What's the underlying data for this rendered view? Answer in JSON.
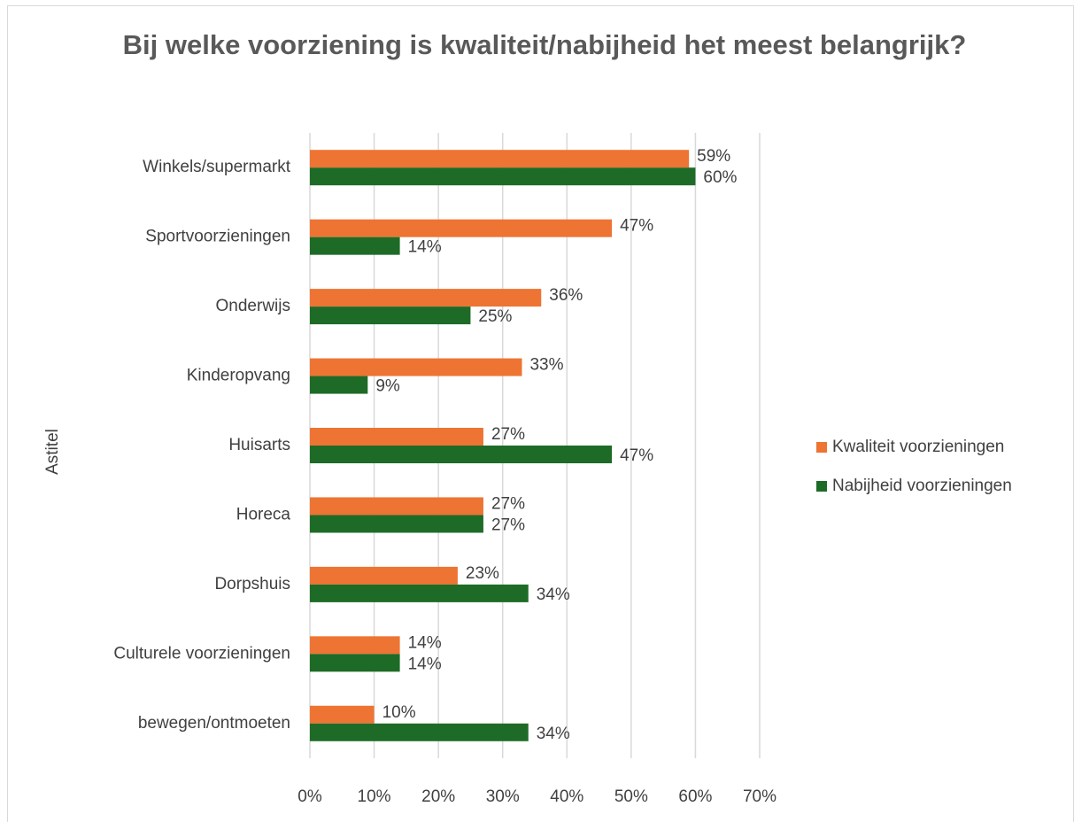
{
  "chart_data": {
    "type": "hbar",
    "title": "Bij welke voorziening is kwaliteit/nabijheid het meest belangrijk?",
    "y_label": "Astitel",
    "categories": [
      "Winkels/supermarkt",
      "Sportvoorzieningen",
      "Onderwijs",
      "Kinderopvang",
      "Huisarts",
      "Horeca",
      "Dorpshuis",
      "Culturele voorzieningen",
      "bewegen/ontmoeten"
    ],
    "series": [
      {
        "name": "Kwaliteit voorzieningen",
        "color": "#ed7433",
        "values": [
          59,
          47,
          36,
          33,
          27,
          27,
          23,
          14,
          10
        ],
        "value_labels": [
          "59%",
          "47%",
          "36%",
          "33%",
          "27%",
          "27%",
          "23%",
          "14%",
          "10%"
        ]
      },
      {
        "name": "Nabijheid voorzieningen",
        "color": "#1e6b27",
        "values": [
          60,
          14,
          25,
          9,
          47,
          27,
          34,
          14,
          34
        ],
        "value_labels": [
          "60%",
          "14%",
          "25%",
          "9%",
          "47%",
          "27%",
          "34%",
          "14%",
          "34%"
        ]
      }
    ],
    "xlim": [
      0,
      70
    ],
    "xticks": [
      {
        "value": 0,
        "label": "0%"
      },
      {
        "value": 10,
        "label": "10%"
      },
      {
        "value": 20,
        "label": "20%"
      },
      {
        "value": 30,
        "label": "30%"
      },
      {
        "value": 40,
        "label": "40%"
      },
      {
        "value": 50,
        "label": "50%"
      },
      {
        "value": 60,
        "label": "60%"
      },
      {
        "value": 70,
        "label": "70%"
      }
    ],
    "grid": true,
    "legend": "right"
  }
}
